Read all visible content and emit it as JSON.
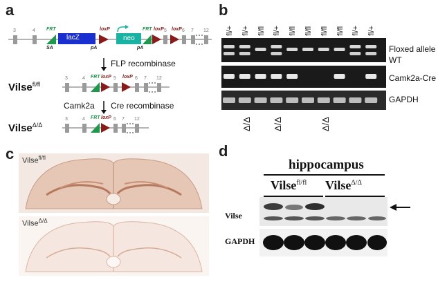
{
  "panels": {
    "a": "a",
    "b": "b",
    "c": "c",
    "d": "d"
  },
  "panel_a": {
    "exon_numbers_top": [
      "3",
      "4",
      "5",
      "6",
      "7",
      "12"
    ],
    "exon_numbers_mid": [
      "3",
      "4",
      "5",
      "6",
      "7",
      "12"
    ],
    "exon_numbers_bot": [
      "3",
      "4",
      "6",
      "7",
      "12"
    ],
    "frt": "FRT",
    "loxp": "loxP",
    "lacz": "lacZ",
    "neo": "neo",
    "sa": "SA",
    "pa": "pA",
    "step1": "FLP recombinase",
    "step2_left": "Camk2a",
    "step2_right": "Cre recombinase",
    "allele_mid_name": "Vilse",
    "allele_mid_sup": "fl/fl",
    "allele_bot_name": "Vilse",
    "allele_bot_sup": "Δ/Δ"
  },
  "panel_b": {
    "lanes": [
      "fl/+",
      "fl/+",
      "fl/fl",
      "fl/+",
      "fl/fl",
      "fl/fl",
      "fl/fl",
      "fl/fl",
      "fl/+",
      "fl/+"
    ],
    "gel_labels": {
      "floxed": "Floxed allele",
      "wt": "WT",
      "cre": "Camk2a-Cre",
      "gapdh": "GAPDH"
    },
    "deletions": [
      "Δ/Δ",
      "Δ/Δ",
      "Δ/Δ"
    ]
  },
  "panel_c": {
    "top_name": "Vilse",
    "top_sup": "fl/fl",
    "bottom_name": "Vilse",
    "bottom_sup": "Δ/Δ"
  },
  "panel_d": {
    "region": "hippocampus",
    "group1_name": "Vilse",
    "group1_sup": "fl/fl",
    "group2_name": "Vilse",
    "group2_sup": "Δ/Δ",
    "row1": "Vilse",
    "row2": "GAPDH"
  }
}
